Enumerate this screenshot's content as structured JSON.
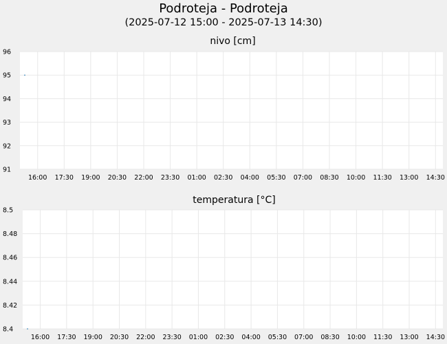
{
  "title": "Podroteja - Podroteja",
  "subtitle": "(2025-07-12 15:00 - 2025-07-13 14:30)",
  "colors": {
    "series": "#1f77b4",
    "grid": "#e8e8e8",
    "plot_bg": "#ffffff",
    "page_bg": "#f0f0f0"
  },
  "chart_data": [
    {
      "type": "line",
      "title": "nivo [cm]",
      "xlabel": "",
      "ylabel": "",
      "xlim": [
        "2025-07-12 15:00",
        "2025-07-13 14:55"
      ],
      "ylim": [
        91,
        96
      ],
      "yticks": [
        "91",
        "92",
        "93",
        "94",
        "95",
        "96"
      ],
      "xticks": [
        {
          "x": "2025-07-12 16:00",
          "label": "16:00"
        },
        {
          "x": "2025-07-12 17:30",
          "label": "17:30"
        },
        {
          "x": "2025-07-12 19:00",
          "label": "19:00"
        },
        {
          "x": "2025-07-12 20:30",
          "label": "20:30"
        },
        {
          "x": "2025-07-12 22:00",
          "label": "22:00"
        },
        {
          "x": "2025-07-12 23:30",
          "label": "23:30"
        },
        {
          "x": "2025-07-13 01:00",
          "label": "01:00"
        },
        {
          "x": "2025-07-13 02:30",
          "label": "02:30"
        },
        {
          "x": "2025-07-13 04:00",
          "label": "04:00"
        },
        {
          "x": "2025-07-13 05:30",
          "label": "05:30"
        },
        {
          "x": "2025-07-13 07:00",
          "label": "07:00"
        },
        {
          "x": "2025-07-13 08:30",
          "label": "08:30"
        },
        {
          "x": "2025-07-13 10:00",
          "label": "10:00"
        },
        {
          "x": "2025-07-13 11:30",
          "label": "11:30"
        },
        {
          "x": "2025-07-13 13:00",
          "label": "13:00"
        },
        {
          "x": "2025-07-13 14:30",
          "label": "14:30"
        }
      ],
      "grid": true,
      "series": [
        {
          "points": [
            {
              "x": "2025-07-12 15:00",
              "y": 95
            }
          ]
        }
      ]
    },
    {
      "type": "line",
      "title": "temperatura [°C]",
      "xlabel": "",
      "ylabel": "",
      "xlim": [
        "2025-07-12 15:00",
        "2025-07-13 14:55"
      ],
      "ylim": [
        8.4,
        8.5
      ],
      "yticks": [
        "8.4",
        "8.42",
        "8.44",
        "8.46",
        "8.48",
        "8.5"
      ],
      "xticks": [
        {
          "x": "2025-07-12 16:00",
          "label": "16:00"
        },
        {
          "x": "2025-07-12 17:30",
          "label": "17:30"
        },
        {
          "x": "2025-07-12 19:00",
          "label": "19:00"
        },
        {
          "x": "2025-07-12 20:30",
          "label": "20:30"
        },
        {
          "x": "2025-07-12 22:00",
          "label": "22:00"
        },
        {
          "x": "2025-07-12 23:30",
          "label": "23:30"
        },
        {
          "x": "2025-07-13 01:00",
          "label": "01:00"
        },
        {
          "x": "2025-07-13 02:30",
          "label": "02:30"
        },
        {
          "x": "2025-07-13 04:00",
          "label": "04:00"
        },
        {
          "x": "2025-07-13 05:30",
          "label": "05:30"
        },
        {
          "x": "2025-07-13 07:00",
          "label": "07:00"
        },
        {
          "x": "2025-07-13 08:30",
          "label": "08:30"
        },
        {
          "x": "2025-07-13 10:00",
          "label": "10:00"
        },
        {
          "x": "2025-07-13 11:30",
          "label": "11:30"
        },
        {
          "x": "2025-07-13 13:00",
          "label": "13:00"
        },
        {
          "x": "2025-07-13 14:30",
          "label": "14:30"
        }
      ],
      "grid": true,
      "series": [
        {
          "points": [
            {
              "x": "2025-07-12 15:00",
              "y": 8.4
            }
          ]
        }
      ]
    }
  ]
}
